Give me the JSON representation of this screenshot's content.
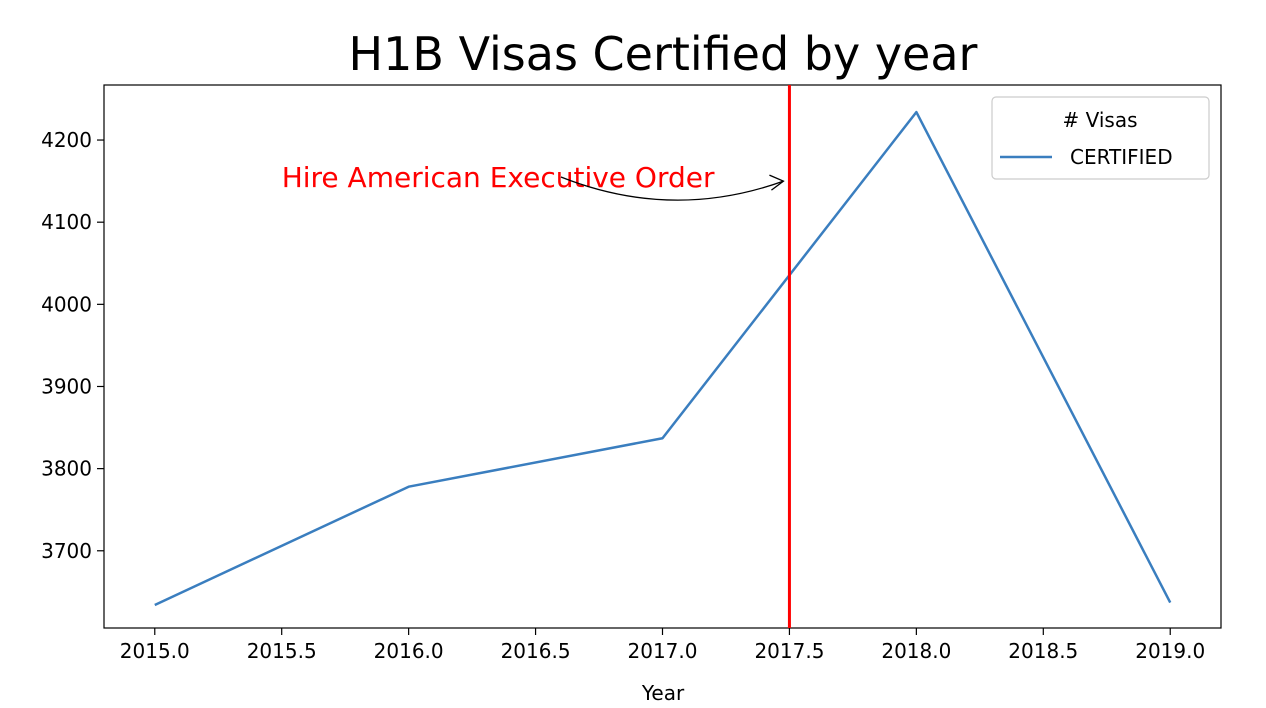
{
  "chart_data": {
    "type": "line",
    "title": "H1B Visas Certified by year",
    "xlabel": "Year",
    "ylabel": "",
    "x": [
      2015,
      2016,
      2017,
      2018,
      2019
    ],
    "series": [
      {
        "name": "CERTIFIED",
        "values": [
          3634,
          3778,
          3837,
          4234,
          3637
        ],
        "color": "#3a7ebf"
      }
    ],
    "xlim": [
      2014.8,
      2019.2
    ],
    "ylim": [
      3606,
      4267
    ],
    "xticks": [
      "2015.0",
      "2015.5",
      "2016.0",
      "2016.5",
      "2017.0",
      "2017.5",
      "2018.0",
      "2018.5",
      "2019.0"
    ],
    "xtick_values": [
      2015,
      2015.5,
      2016,
      2016.5,
      2017,
      2017.5,
      2018,
      2018.5,
      2019
    ],
    "yticks": [
      "3700",
      "3800",
      "3900",
      "4000",
      "4100",
      "4200"
    ],
    "ytick_values": [
      3700,
      3800,
      3900,
      4000,
      4100,
      4200
    ],
    "grid": false,
    "legend": {
      "title": "# Visas",
      "placement": "top-right"
    },
    "vline": {
      "x": 2017.5,
      "color": "#ff0000"
    },
    "annotation": {
      "text": "Hire American Executive Order",
      "color": "#ff0000",
      "text_x": 2015.5,
      "text_y": 4155,
      "arrow_from": [
        2016.6,
        4155
      ],
      "arrow_to": [
        2017.5,
        4150
      ]
    }
  }
}
